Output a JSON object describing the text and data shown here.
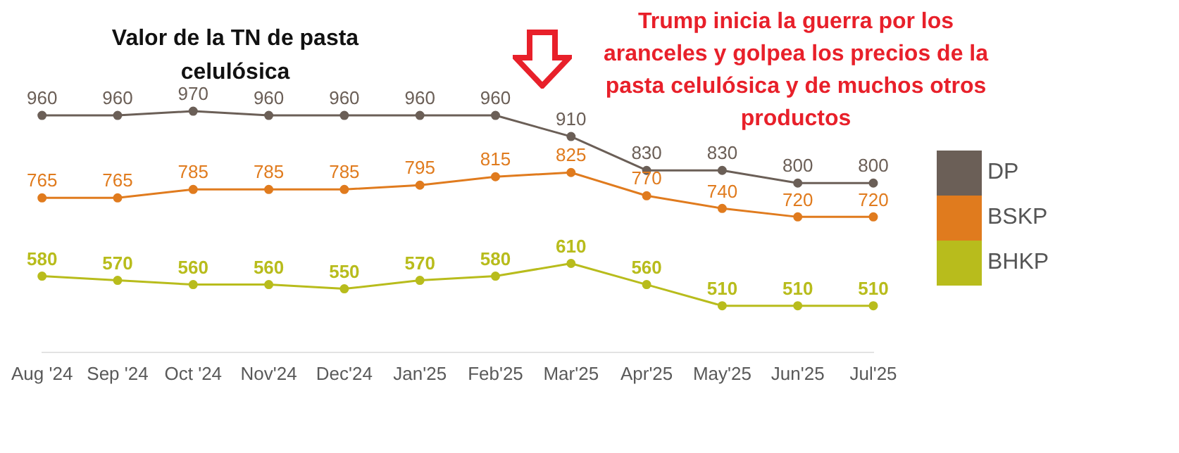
{
  "chart_data": {
    "type": "line",
    "title": "Valor de la TN de pasta celulósica",
    "annotations": [
      "Trump inicia la guerra por los aranceles y golpea los precios de la pasta celulósica y de muchos otros productos"
    ],
    "categories": [
      "Aug '24",
      "Sep '24",
      "Oct '24",
      "Nov'24",
      "Dec'24",
      "Jan'25",
      "Feb'25",
      "Mar'25",
      "Apr'25",
      "May'25",
      "Jun'25",
      "Jul'25"
    ],
    "series": [
      {
        "name": "DP",
        "color": "#6b5f57",
        "values": [
          960,
          960,
          970,
          960,
          960,
          960,
          960,
          910,
          830,
          830,
          800,
          800
        ]
      },
      {
        "name": "BSKP",
        "color": "#e07b1e",
        "values": [
          765,
          765,
          785,
          785,
          785,
          795,
          815,
          825,
          770,
          740,
          720,
          720
        ]
      },
      {
        "name": "BHKP",
        "color": "#b8bc1c",
        "values": [
          580,
          570,
          560,
          560,
          550,
          570,
          580,
          610,
          560,
          510,
          510,
          510
        ]
      }
    ],
    "tick_labels": "x",
    "data_labels": true,
    "legend": "right",
    "marker": "circle",
    "line_style": "solid",
    "grid": false
  }
}
